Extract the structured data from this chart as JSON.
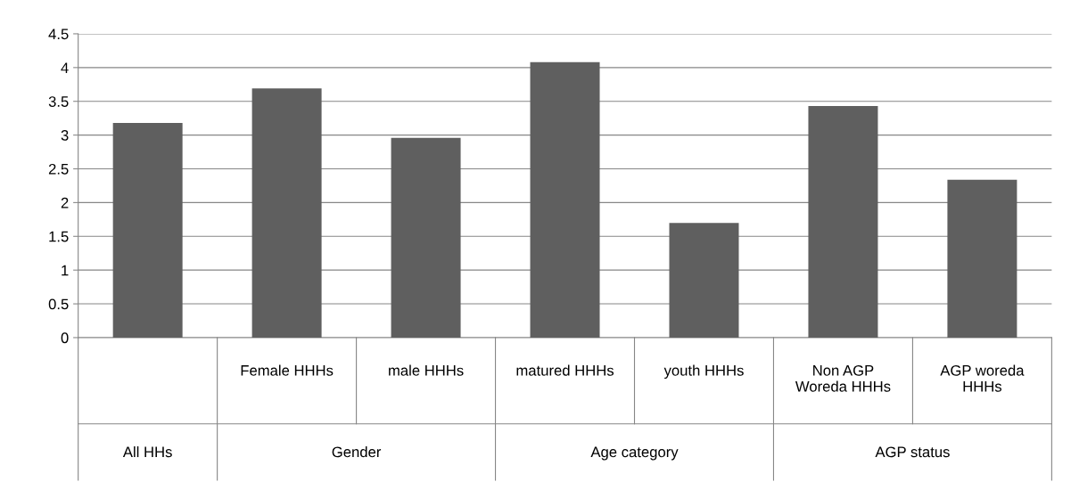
{
  "chart_data": {
    "type": "bar",
    "categories": [
      null,
      "Female HHHs",
      "male HHHs",
      "matured HHHs",
      "youth HHHs",
      "Non AGP\nWoreda HHHs",
      "AGP woreda\nHHHs"
    ],
    "values": [
      3.18,
      3.69,
      2.96,
      4.08,
      1.7,
      3.43,
      2.34
    ],
    "color": "#5f5f5f",
    "ylim": [
      0,
      4.5
    ],
    "yticks": [
      0,
      0.5,
      1,
      1.5,
      2,
      2.5,
      3,
      3.5,
      4,
      4.5
    ],
    "grid": "y",
    "legend": false,
    "annotations": [
      "All HHs",
      "Gender",
      "Age category",
      "AGP status"
    ]
  }
}
